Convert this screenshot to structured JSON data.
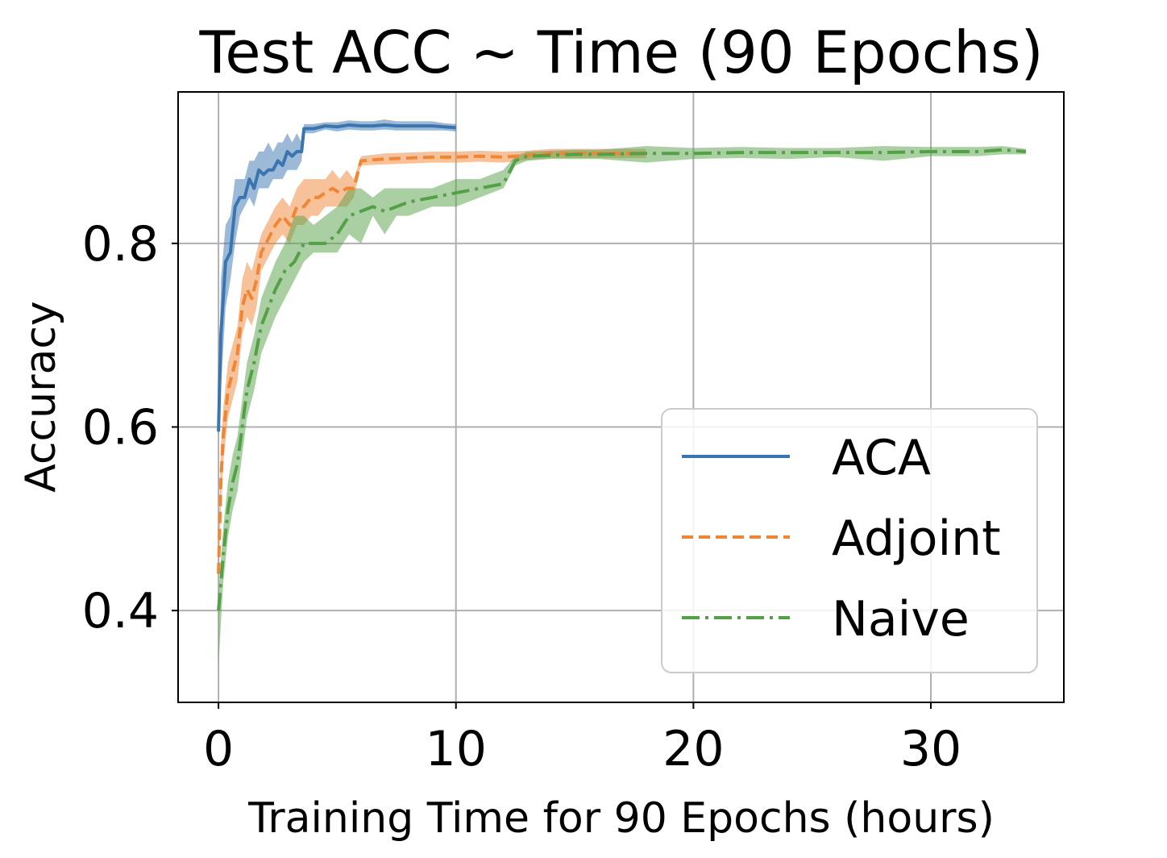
{
  "chart_data": {
    "type": "line",
    "title": "Test ACC ~ Time (90 Epochs)",
    "xlabel": "Training Time for 90 Epochs (hours)",
    "ylabel": "Accuracy",
    "xlim": [
      -1.7,
      35.6
    ],
    "ylim": [
      0.3,
      0.965
    ],
    "xticks": [
      0,
      10,
      20,
      30
    ],
    "yticks": [
      0.4,
      0.6,
      0.8
    ],
    "xtick_labels": [
      "0",
      "10",
      "20",
      "30"
    ],
    "ytick_labels": [
      "0.4",
      "0.6",
      "0.8"
    ],
    "grid": true,
    "legend_position": "lower right",
    "series": [
      {
        "name": "ACA",
        "color": "#3a75b0",
        "dash": "solid",
        "points": [
          [
            0,
            0.595
          ],
          [
            0.1,
            0.7
          ],
          [
            0.3,
            0.78
          ],
          [
            0.5,
            0.79
          ],
          [
            0.7,
            0.84
          ],
          [
            0.9,
            0.85
          ],
          [
            1.1,
            0.85
          ],
          [
            1.3,
            0.87
          ],
          [
            1.5,
            0.86
          ],
          [
            1.7,
            0.88
          ],
          [
            1.9,
            0.875
          ],
          [
            2.1,
            0.88
          ],
          [
            2.3,
            0.88
          ],
          [
            2.5,
            0.89
          ],
          [
            2.7,
            0.885
          ],
          [
            2.9,
            0.9
          ],
          [
            3.1,
            0.895
          ],
          [
            3.3,
            0.9
          ],
          [
            3.5,
            0.9
          ],
          [
            3.6,
            0.925
          ],
          [
            4.0,
            0.925
          ],
          [
            4.5,
            0.928
          ],
          [
            5.0,
            0.927
          ],
          [
            5.5,
            0.929
          ],
          [
            6.0,
            0.928
          ],
          [
            6.5,
            0.928
          ],
          [
            7.0,
            0.929
          ],
          [
            7.5,
            0.928
          ],
          [
            8.0,
            0.928
          ],
          [
            8.5,
            0.928
          ],
          [
            9.0,
            0.928
          ],
          [
            9.5,
            0.927
          ],
          [
            10.0,
            0.926
          ]
        ],
        "band": [
          [
            0,
            0.59,
            0.6
          ],
          [
            0.1,
            0.64,
            0.76
          ],
          [
            0.3,
            0.73,
            0.82
          ],
          [
            0.5,
            0.76,
            0.83
          ],
          [
            0.7,
            0.8,
            0.87
          ],
          [
            0.9,
            0.83,
            0.87
          ],
          [
            1.1,
            0.84,
            0.87
          ],
          [
            1.3,
            0.85,
            0.89
          ],
          [
            1.5,
            0.84,
            0.89
          ],
          [
            1.7,
            0.86,
            0.9
          ],
          [
            1.9,
            0.86,
            0.9
          ],
          [
            2.1,
            0.86,
            0.91
          ],
          [
            2.3,
            0.87,
            0.9
          ],
          [
            2.5,
            0.87,
            0.91
          ],
          [
            2.7,
            0.87,
            0.91
          ],
          [
            2.9,
            0.88,
            0.92
          ],
          [
            3.1,
            0.88,
            0.91
          ],
          [
            3.3,
            0.88,
            0.92
          ],
          [
            3.5,
            0.89,
            0.91
          ],
          [
            3.6,
            0.92,
            0.93
          ],
          [
            4.0,
            0.92,
            0.93
          ],
          [
            4.5,
            0.924,
            0.932
          ],
          [
            5.0,
            0.922,
            0.932
          ],
          [
            5.5,
            0.924,
            0.934
          ],
          [
            6.0,
            0.923,
            0.933
          ],
          [
            6.5,
            0.923,
            0.933
          ],
          [
            7.0,
            0.924,
            0.935
          ],
          [
            7.5,
            0.923,
            0.933
          ],
          [
            8.0,
            0.923,
            0.933
          ],
          [
            8.5,
            0.923,
            0.933
          ],
          [
            9.0,
            0.923,
            0.933
          ],
          [
            9.5,
            0.923,
            0.931
          ],
          [
            10.0,
            0.922,
            0.93
          ]
        ]
      },
      {
        "name": "Adjoint",
        "color": "#ef8636",
        "dash": "dashed",
        "points": [
          [
            0,
            0.44
          ],
          [
            0.1,
            0.54
          ],
          [
            0.2,
            0.59
          ],
          [
            0.4,
            0.64
          ],
          [
            0.6,
            0.66
          ],
          [
            0.8,
            0.68
          ],
          [
            1.0,
            0.73
          ],
          [
            1.2,
            0.75
          ],
          [
            1.4,
            0.74
          ],
          [
            1.6,
            0.76
          ],
          [
            1.8,
            0.79
          ],
          [
            2.0,
            0.8
          ],
          [
            2.2,
            0.81
          ],
          [
            2.4,
            0.82
          ],
          [
            2.7,
            0.83
          ],
          [
            3.0,
            0.82
          ],
          [
            3.3,
            0.84
          ],
          [
            3.6,
            0.84
          ],
          [
            3.9,
            0.85
          ],
          [
            4.2,
            0.85
          ],
          [
            4.5,
            0.855
          ],
          [
            4.8,
            0.86
          ],
          [
            5.1,
            0.855
          ],
          [
            5.4,
            0.86
          ],
          [
            5.7,
            0.86
          ],
          [
            6.0,
            0.89
          ],
          [
            7.0,
            0.892
          ],
          [
            8.0,
            0.893
          ],
          [
            9.0,
            0.894
          ],
          [
            10.0,
            0.894
          ],
          [
            11.0,
            0.895
          ],
          [
            12.0,
            0.894
          ],
          [
            13.0,
            0.896
          ],
          [
            14.0,
            0.898
          ],
          [
            15.0,
            0.898
          ],
          [
            16.0,
            0.898
          ],
          [
            17.0,
            0.898
          ],
          [
            18.0,
            0.898
          ]
        ],
        "band": [
          [
            0,
            0.43,
            0.47
          ],
          [
            0.1,
            0.51,
            0.58
          ],
          [
            0.2,
            0.56,
            0.62
          ],
          [
            0.4,
            0.61,
            0.67
          ],
          [
            0.6,
            0.63,
            0.69
          ],
          [
            0.8,
            0.65,
            0.71
          ],
          [
            1.0,
            0.7,
            0.76
          ],
          [
            1.2,
            0.72,
            0.78
          ],
          [
            1.4,
            0.71,
            0.77
          ],
          [
            1.6,
            0.73,
            0.79
          ],
          [
            1.8,
            0.77,
            0.81
          ],
          [
            2.0,
            0.78,
            0.82
          ],
          [
            2.2,
            0.79,
            0.83
          ],
          [
            2.4,
            0.8,
            0.84
          ],
          [
            2.7,
            0.81,
            0.85
          ],
          [
            3.0,
            0.8,
            0.84
          ],
          [
            3.3,
            0.82,
            0.86
          ],
          [
            3.6,
            0.82,
            0.87
          ],
          [
            3.9,
            0.83,
            0.87
          ],
          [
            4.2,
            0.83,
            0.87
          ],
          [
            4.5,
            0.84,
            0.87
          ],
          [
            4.8,
            0.84,
            0.88
          ],
          [
            5.1,
            0.84,
            0.87
          ],
          [
            5.4,
            0.84,
            0.88
          ],
          [
            5.7,
            0.85,
            0.87
          ],
          [
            6.0,
            0.885,
            0.895
          ],
          [
            7.0,
            0.886,
            0.898
          ],
          [
            8.0,
            0.887,
            0.899
          ],
          [
            9.0,
            0.888,
            0.9
          ],
          [
            10.0,
            0.888,
            0.9
          ],
          [
            11.0,
            0.889,
            0.901
          ],
          [
            12.0,
            0.888,
            0.9
          ],
          [
            13.0,
            0.891,
            0.901
          ],
          [
            14.0,
            0.893,
            0.903
          ],
          [
            15.0,
            0.893,
            0.903
          ],
          [
            16.0,
            0.893,
            0.903
          ],
          [
            17.0,
            0.893,
            0.903
          ],
          [
            18.0,
            0.893,
            0.903
          ]
        ]
      },
      {
        "name": "Naive",
        "color": "#54a046",
        "dash": "dashdot",
        "points": [
          [
            0,
            0.4
          ],
          [
            0.2,
            0.46
          ],
          [
            0.4,
            0.51
          ],
          [
            0.6,
            0.54
          ],
          [
            0.8,
            0.56
          ],
          [
            1.0,
            0.6
          ],
          [
            1.2,
            0.64
          ],
          [
            1.5,
            0.67
          ],
          [
            1.8,
            0.71
          ],
          [
            2.1,
            0.73
          ],
          [
            2.4,
            0.75
          ],
          [
            2.8,
            0.77
          ],
          [
            3.2,
            0.78
          ],
          [
            3.6,
            0.8
          ],
          [
            4.0,
            0.8
          ],
          [
            4.5,
            0.8
          ],
          [
            5.0,
            0.81
          ],
          [
            5.5,
            0.83
          ],
          [
            6.0,
            0.835
          ],
          [
            6.5,
            0.84
          ],
          [
            7.0,
            0.835
          ],
          [
            7.5,
            0.84
          ],
          [
            8.0,
            0.845
          ],
          [
            9.0,
            0.85
          ],
          [
            10.0,
            0.855
          ],
          [
            11.0,
            0.86
          ],
          [
            12.0,
            0.865
          ],
          [
            12.5,
            0.89
          ],
          [
            13.0,
            0.895
          ],
          [
            14.0,
            0.896
          ],
          [
            15.0,
            0.897
          ],
          [
            16.0,
            0.897
          ],
          [
            18.0,
            0.898
          ],
          [
            20.0,
            0.898
          ],
          [
            22.0,
            0.899
          ],
          [
            24.0,
            0.899
          ],
          [
            26.0,
            0.899
          ],
          [
            28.0,
            0.899
          ],
          [
            30.0,
            0.9
          ],
          [
            32.0,
            0.9
          ],
          [
            33.0,
            0.902
          ],
          [
            34.0,
            0.9
          ]
        ],
        "band": [
          [
            0,
            0.34,
            0.42
          ],
          [
            0.2,
            0.43,
            0.49
          ],
          [
            0.4,
            0.48,
            0.54
          ],
          [
            0.6,
            0.51,
            0.57
          ],
          [
            0.8,
            0.53,
            0.59
          ],
          [
            1.0,
            0.57,
            0.63
          ],
          [
            1.2,
            0.61,
            0.67
          ],
          [
            1.5,
            0.64,
            0.7
          ],
          [
            1.8,
            0.68,
            0.74
          ],
          [
            2.1,
            0.7,
            0.76
          ],
          [
            2.4,
            0.72,
            0.78
          ],
          [
            2.8,
            0.74,
            0.8
          ],
          [
            3.2,
            0.76,
            0.83
          ],
          [
            3.6,
            0.78,
            0.83
          ],
          [
            4.0,
            0.79,
            0.82
          ],
          [
            4.5,
            0.79,
            0.83
          ],
          [
            5.0,
            0.79,
            0.84
          ],
          [
            5.5,
            0.81,
            0.86
          ],
          [
            6.0,
            0.8,
            0.86
          ],
          [
            6.5,
            0.83,
            0.85
          ],
          [
            7.0,
            0.81,
            0.86
          ],
          [
            7.5,
            0.83,
            0.86
          ],
          [
            8.0,
            0.83,
            0.86
          ],
          [
            9.0,
            0.84,
            0.86
          ],
          [
            10.0,
            0.84,
            0.87
          ],
          [
            11.0,
            0.85,
            0.87
          ],
          [
            12.0,
            0.86,
            0.88
          ],
          [
            12.5,
            0.885,
            0.895
          ],
          [
            13.0,
            0.89,
            0.9
          ],
          [
            14.0,
            0.892,
            0.901
          ],
          [
            15.0,
            0.892,
            0.902
          ],
          [
            16.0,
            0.892,
            0.902
          ],
          [
            18.0,
            0.888,
            0.906
          ],
          [
            20.0,
            0.892,
            0.904
          ],
          [
            22.0,
            0.893,
            0.905
          ],
          [
            24.0,
            0.892,
            0.904
          ],
          [
            26.0,
            0.894,
            0.904
          ],
          [
            28.0,
            0.89,
            0.906
          ],
          [
            30.0,
            0.895,
            0.905
          ],
          [
            32.0,
            0.895,
            0.905
          ],
          [
            33.0,
            0.897,
            0.906
          ],
          [
            34.0,
            0.897,
            0.903
          ]
        ]
      }
    ]
  }
}
